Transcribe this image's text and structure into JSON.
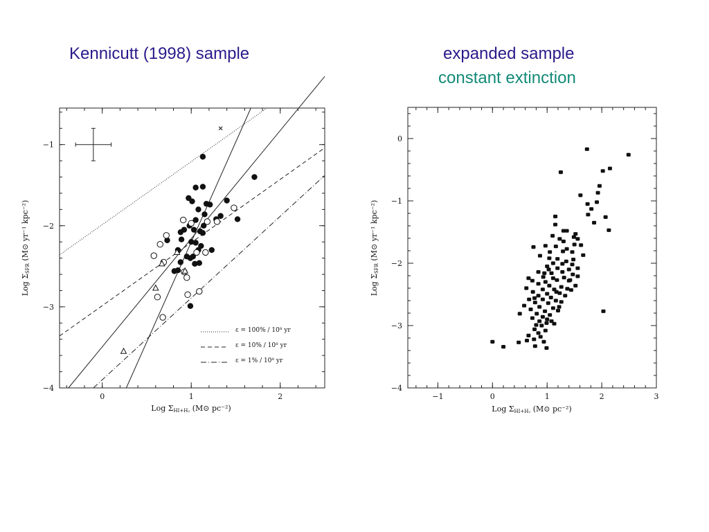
{
  "titles": {
    "left": "Kennicutt (1998) sample",
    "right_line1": "expanded sample",
    "right_line2": "constant extinction"
  },
  "colors": {
    "left_title": "#2a1a8a",
    "right_title1": "#2a1a8a",
    "right_title2": "#138a78"
  },
  "chart_data": [
    {
      "type": "scatter",
      "title": "Kennicutt (1998) sample",
      "xlabel": "Log Σ_HI+H2  (M⊙ pc⁻²)",
      "ylabel": "Log Σ_SFR  (M⊙ yr⁻¹ kpc⁻²)",
      "xlim": [
        -0.48,
        2.5
      ],
      "ylim": [
        -4.0,
        -0.55
      ],
      "x_ticks": [
        "0",
        "1",
        "2"
      ],
      "y_ticks": [
        "−1",
        "−2",
        "−3",
        "−4"
      ],
      "legend": [
        "ε = 100% / 10⁸ yr",
        "ε =  10% / 10⁸ yr",
        "ε =   1% / 10⁸ yr"
      ],
      "legend_position": "bottom-right",
      "error_bar": {
        "x": -0.1,
        "y": -1.0,
        "dx": 0.2,
        "dy": 0.2
      },
      "lines": [
        {
          "name": "ε = 100% / 10⁸ yr",
          "style": "dotted",
          "x": [
            -0.48,
            1.85
          ],
          "y": [
            -2.36,
            -0.55
          ]
        },
        {
          "name": "ε =  10% / 10⁸ yr",
          "style": "dashed",
          "x": [
            -0.48,
            2.5
          ],
          "y": [
            -3.36,
            -1.04
          ]
        },
        {
          "name": "ε =   1% / 10⁸ yr",
          "style": "dashdot",
          "x": [
            -0.1,
            2.5
          ],
          "y": [
            -4.0,
            -1.38
          ]
        },
        {
          "name": "",
          "style": "solid",
          "x": [
            -0.38,
            2.5
          ],
          "y": [
            -4.0,
            -0.16
          ]
        },
        {
          "name": "",
          "style": "solid",
          "x": [
            0.27,
            1.67
          ],
          "y": [
            -4.0,
            -0.55
          ]
        }
      ],
      "series": [
        {
          "marker": "filled-circle",
          "points": [
            [
              1.13,
              -1.15
            ],
            [
              1.05,
              -1.53
            ],
            [
              1.13,
              -1.52
            ],
            [
              0.97,
              -1.66
            ],
            [
              1.01,
              -1.7
            ],
            [
              1.08,
              -1.8
            ],
            [
              1.17,
              -1.73
            ],
            [
              1.21,
              -1.74
            ],
            [
              1.15,
              -1.86
            ],
            [
              1.33,
              -1.88
            ],
            [
              1.4,
              -1.69
            ],
            [
              1.52,
              -1.92
            ],
            [
              1.71,
              -1.4
            ],
            [
              1.05,
              -1.93
            ],
            [
              1.14,
              -2.0
            ],
            [
              1.1,
              -2.07
            ],
            [
              1.03,
              -2.05
            ],
            [
              0.98,
              -2.0
            ],
            [
              0.92,
              -2.05
            ],
            [
              0.88,
              -2.08
            ],
            [
              1.13,
              -2.09
            ],
            [
              0.73,
              -2.18
            ],
            [
              0.89,
              -2.17
            ],
            [
              1.05,
              -2.21
            ],
            [
              1.11,
              -2.25
            ],
            [
              1.08,
              -2.3
            ],
            [
              0.85,
              -2.3
            ],
            [
              0.95,
              -2.38
            ],
            [
              1.02,
              -2.38
            ],
            [
              0.88,
              -2.45
            ],
            [
              1.04,
              -2.47
            ],
            [
              0.85,
              -2.55
            ],
            [
              0.99,
              -2.4
            ],
            [
              1.23,
              -2.3
            ],
            [
              1.28,
              -1.92
            ],
            [
              1.09,
              -2.46
            ],
            [
              0.99,
              -2.99
            ],
            [
              0.81,
              -2.56
            ],
            [
              1.0,
              -2.2
            ]
          ]
        },
        {
          "marker": "open-circle",
          "points": [
            [
              0.91,
              -1.93
            ],
            [
              1.0,
              -1.97
            ],
            [
              1.18,
              -1.95
            ],
            [
              1.29,
              -1.95
            ],
            [
              1.48,
              -1.78
            ],
            [
              0.72,
              -2.12
            ],
            [
              0.65,
              -2.23
            ],
            [
              0.58,
              -2.37
            ],
            [
              1.06,
              -2.33
            ],
            [
              1.16,
              -2.33
            ],
            [
              0.69,
              -2.45
            ],
            [
              0.92,
              -2.57
            ],
            [
              0.95,
              -2.64
            ],
            [
              0.62,
              -2.88
            ],
            [
              0.96,
              -2.85
            ],
            [
              1.09,
              -2.81
            ],
            [
              0.68,
              -3.13
            ]
          ]
        },
        {
          "marker": "open-triangle",
          "points": [
            [
              0.67,
              -2.47
            ],
            [
              0.84,
              -2.33
            ],
            [
              0.93,
              -2.56
            ],
            [
              0.6,
              -2.77
            ],
            [
              0.24,
              -3.55
            ]
          ]
        },
        {
          "marker": "cross",
          "points": [
            [
              1.33,
              -0.8
            ]
          ]
        }
      ]
    },
    {
      "type": "scatter",
      "title": "expanded sample / constant extinction",
      "xlabel": "Log Σ_HI+H2  (M⊙ pc⁻²)",
      "ylabel": "Log Σ_SFR  (M⊙ yr⁻¹ kpc⁻²)",
      "xlim": [
        -1.55,
        3.0
      ],
      "ylim": [
        -4.0,
        0.5
      ],
      "x_ticks": [
        "−1",
        "0",
        "1",
        "2",
        "3"
      ],
      "y_ticks": [
        "0",
        "−1",
        "−2",
        "−3",
        "−4"
      ],
      "series": [
        {
          "marker": "filled-square",
          "points": [
            [
              1.73,
              -0.17
            ],
            [
              2.49,
              -0.26
            ],
            [
              2.15,
              -0.48
            ],
            [
              2.02,
              -0.52
            ],
            [
              1.25,
              -0.54
            ],
            [
              1.96,
              -0.76
            ],
            [
              1.93,
              -0.87
            ],
            [
              1.61,
              -0.91
            ],
            [
              1.74,
              -1.05
            ],
            [
              1.91,
              -1.02
            ],
            [
              1.81,
              -1.13
            ],
            [
              1.75,
              -1.22
            ],
            [
              2.07,
              -1.26
            ],
            [
              1.86,
              -1.35
            ],
            [
              2.13,
              -1.47
            ],
            [
              1.15,
              -1.25
            ],
            [
              1.15,
              -1.38
            ],
            [
              1.3,
              -1.48
            ],
            [
              1.36,
              -1.48
            ],
            [
              1.52,
              -1.53
            ],
            [
              1.49,
              -1.58
            ],
            [
              1.56,
              -1.61
            ],
            [
              1.23,
              -1.61
            ],
            [
              1.3,
              -1.65
            ],
            [
              0.75,
              -1.74
            ],
            [
              0.97,
              -1.72
            ],
            [
              1.16,
              -1.73
            ],
            [
              1.5,
              -1.7
            ],
            [
              1.62,
              -1.71
            ],
            [
              1.05,
              -1.82
            ],
            [
              1.29,
              -1.81
            ],
            [
              1.46,
              -1.82
            ],
            [
              1.66,
              -1.87
            ],
            [
              0.87,
              -1.88
            ],
            [
              1.04,
              -1.92
            ],
            [
              1.19,
              -1.93
            ],
            [
              1.35,
              -1.97
            ],
            [
              1.11,
              -2.0
            ],
            [
              1.28,
              -2.01
            ],
            [
              1.46,
              -2.02
            ],
            [
              1.0,
              -2.05
            ],
            [
              1.19,
              -2.08
            ],
            [
              1.4,
              -2.1
            ],
            [
              1.56,
              -2.08
            ],
            [
              1.03,
              -2.1
            ],
            [
              0.84,
              -2.14
            ],
            [
              1.08,
              -2.16
            ],
            [
              1.28,
              -2.14
            ],
            [
              1.47,
              -2.18
            ],
            [
              0.93,
              -2.22
            ],
            [
              1.11,
              -2.24
            ],
            [
              1.31,
              -2.23
            ],
            [
              1.56,
              -2.21
            ],
            [
              0.73,
              -2.28
            ],
            [
              0.97,
              -2.3
            ],
            [
              1.18,
              -2.27
            ],
            [
              1.42,
              -2.27
            ],
            [
              0.84,
              -2.33
            ],
            [
              1.04,
              -2.36
            ],
            [
              1.26,
              -2.38
            ],
            [
              1.52,
              -2.36
            ],
            [
              0.62,
              -2.4
            ],
            [
              0.92,
              -2.42
            ],
            [
              1.13,
              -2.42
            ],
            [
              1.37,
              -2.41
            ],
            [
              0.74,
              -2.46
            ],
            [
              1.0,
              -2.49
            ],
            [
              1.23,
              -2.48
            ],
            [
              0.84,
              -2.52
            ],
            [
              1.07,
              -2.55
            ],
            [
              1.33,
              -2.52
            ],
            [
              0.67,
              -2.58
            ],
            [
              0.92,
              -2.58
            ],
            [
              1.16,
              -2.6
            ],
            [
              0.78,
              -2.63
            ],
            [
              1.02,
              -2.64
            ],
            [
              1.26,
              -2.62
            ],
            [
              0.58,
              -2.68
            ],
            [
              0.86,
              -2.7
            ],
            [
              1.11,
              -2.72
            ],
            [
              0.7,
              -2.74
            ],
            [
              0.96,
              -2.77
            ],
            [
              1.2,
              -2.76
            ],
            [
              0.81,
              -2.81
            ],
            [
              1.05,
              -2.83
            ],
            [
              0.92,
              -2.86
            ],
            [
              0.73,
              -2.88
            ],
            [
              1.0,
              -2.9
            ],
            [
              0.86,
              -2.93
            ],
            [
              0.99,
              -2.96
            ],
            [
              0.8,
              -2.99
            ],
            [
              1.13,
              -2.97
            ],
            [
              0.9,
              -3.0
            ],
            [
              0.77,
              -3.06
            ],
            [
              0.97,
              -3.08
            ],
            [
              0.84,
              -3.12
            ],
            [
              0.66,
              -3.16
            ],
            [
              0.88,
              -3.18
            ],
            [
              0.76,
              -3.22
            ],
            [
              0.94,
              -3.26
            ],
            [
              0.63,
              -3.24
            ],
            [
              0.48,
              -3.27
            ],
            [
              0.2,
              -3.34
            ],
            [
              0.0,
              -3.26
            ],
            [
              0.99,
              -3.36
            ],
            [
              2.03,
              -2.77
            ],
            [
              0.78,
              -3.33
            ],
            [
              1.4,
              -2.28
            ],
            [
              1.22,
              -2.7
            ],
            [
              1.08,
              -2.93
            ],
            [
              0.5,
              -2.81
            ],
            [
              1.48,
              -1.94
            ],
            [
              1.1,
              -1.56
            ],
            [
              1.36,
              -1.77
            ],
            [
              0.95,
              -2.16
            ],
            [
              0.66,
              -2.24
            ],
            [
              1.17,
              -2.46
            ],
            [
              0.77,
              -2.56
            ],
            [
              1.44,
              -2.43
            ]
          ]
        }
      ]
    }
  ]
}
